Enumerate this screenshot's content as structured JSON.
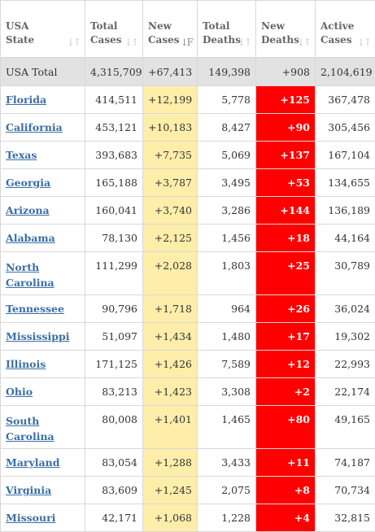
{
  "headers": [
    {
      "line1": "USA",
      "line2": "State",
      "sort": "↓↑"
    },
    {
      "line1": "Total",
      "line2": "Cases",
      "sort": "↓↑"
    },
    {
      "line1": "New",
      "line2": "Cases",
      "sort": "↓F"
    },
    {
      "line1": "Total",
      "line2": "Deaths",
      "sort": "↓↑"
    },
    {
      "line1": "New",
      "line2": "Deaths",
      "sort": "↓↑"
    },
    {
      "line1": "Active",
      "line2": "Cases",
      "sort": "↓↑"
    }
  ],
  "total": {
    "state": "USA Total",
    "total_cases": "4,315,709",
    "new_cases": "+67,413",
    "total_deaths": "149,398",
    "new_deaths": "+908",
    "active_cases": "2,104,619"
  },
  "rows": [
    {
      "state": "Florida",
      "total_cases": "414,511",
      "new_cases": "+12,199",
      "total_deaths": "5,778",
      "new_deaths": "+125",
      "active_cases": "367,478"
    },
    {
      "state": "California",
      "total_cases": "453,121",
      "new_cases": "+10,183",
      "total_deaths": "8,427",
      "new_deaths": "+90",
      "active_cases": "305,456"
    },
    {
      "state": "Texas",
      "total_cases": "393,683",
      "new_cases": "+7,735",
      "total_deaths": "5,069",
      "new_deaths": "+137",
      "active_cases": "167,104"
    },
    {
      "state": "Georgia",
      "total_cases": "165,188",
      "new_cases": "+3,787",
      "total_deaths": "3,495",
      "new_deaths": "+53",
      "active_cases": "134,655"
    },
    {
      "state": "Arizona",
      "total_cases": "160,041",
      "new_cases": "+3,740",
      "total_deaths": "3,286",
      "new_deaths": "+144",
      "active_cases": "136,189"
    },
    {
      "state": "Alabama",
      "total_cases": "78,130",
      "new_cases": "+2,125",
      "total_deaths": "1,456",
      "new_deaths": "+18",
      "active_cases": "44,164"
    },
    {
      "state": "North Carolina",
      "total_cases": "111,299",
      "new_cases": "+2,028",
      "total_deaths": "1,803",
      "new_deaths": "+25",
      "active_cases": "30,789"
    },
    {
      "state": "Tennessee",
      "total_cases": "90,796",
      "new_cases": "+1,718",
      "total_deaths": "964",
      "new_deaths": "+26",
      "active_cases": "36,024"
    },
    {
      "state": "Mississippi",
      "total_cases": "51,097",
      "new_cases": "+1,434",
      "total_deaths": "1,480",
      "new_deaths": "+17",
      "active_cases": "19,302"
    },
    {
      "state": "Illinois",
      "total_cases": "171,125",
      "new_cases": "+1,426",
      "total_deaths": "7,589",
      "new_deaths": "+12",
      "active_cases": "22,993"
    },
    {
      "state": "Ohio",
      "total_cases": "83,213",
      "new_cases": "+1,423",
      "total_deaths": "3,308",
      "new_deaths": "+2",
      "active_cases": "22,174"
    },
    {
      "state": "South Carolina",
      "total_cases": "80,008",
      "new_cases": "+1,401",
      "total_deaths": "1,465",
      "new_deaths": "+80",
      "active_cases": "49,165"
    },
    {
      "state": "Maryland",
      "total_cases": "83,054",
      "new_cases": "+1,288",
      "total_deaths": "3,433",
      "new_deaths": "+11",
      "active_cases": "74,187"
    },
    {
      "state": "Virginia",
      "total_cases": "83,609",
      "new_cases": "+1,245",
      "total_deaths": "2,075",
      "new_deaths": "+8",
      "active_cases": "70,734"
    },
    {
      "state": "Missouri",
      "total_cases": "42,171",
      "new_cases": "+1,068",
      "total_deaths": "1,228",
      "new_deaths": "+4",
      "active_cases": "32,815"
    }
  ],
  "colors": {
    "new_cases_bg": "#ffeeaa",
    "new_deaths_bg": "#ff0000",
    "link": "#3a6ea5",
    "total_row_bg": "#e2e2e2"
  }
}
